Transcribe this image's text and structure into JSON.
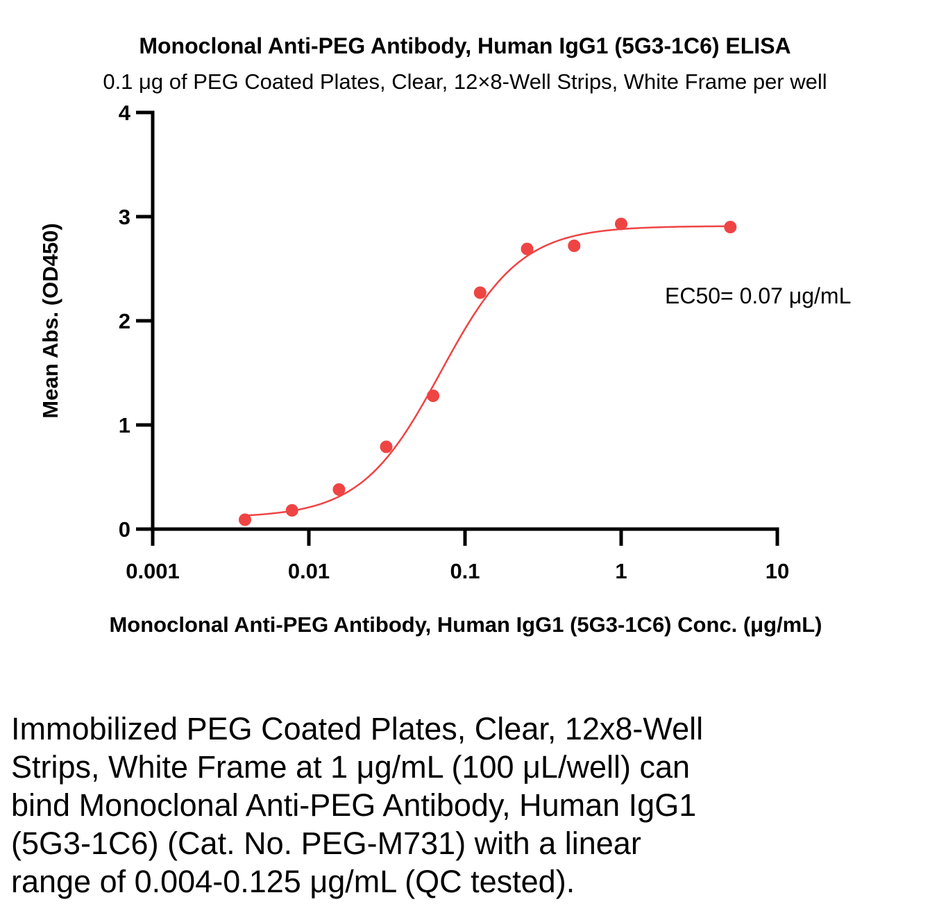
{
  "chart_data": {
    "type": "scatter",
    "title": "Monoclonal Anti-PEG Antibody, Human IgG1 (5G3-1C6) ELISA",
    "subtitle": "0.1 μg of PEG Coated Plates, Clear, 12×8-Well Strips, White Frame per well",
    "xlabel": "Monoclonal Anti-PEG Antibody, Human IgG1 (5G3-1C6) Conc. (μg/mL)",
    "ylabel": "Mean Abs. (OD450)",
    "xscale": "log",
    "xlim": [
      0.001,
      10
    ],
    "ylim": [
      0,
      4
    ],
    "x_ticks": [
      0.001,
      0.01,
      0.1,
      1,
      10
    ],
    "x_tick_labels": [
      "0.001",
      "0.01",
      "0.1",
      "1",
      "10"
    ],
    "y_ticks": [
      0,
      1,
      2,
      3,
      4
    ],
    "y_tick_labels": [
      "0",
      "1",
      "2",
      "3",
      "4"
    ],
    "grid": false,
    "series": [
      {
        "color": "#ef4444",
        "x": [
          0.0039,
          0.0078,
          0.0156,
          0.0313,
          0.0625,
          0.125,
          0.25,
          0.5,
          1,
          5
        ],
        "y": [
          0.09,
          0.18,
          0.38,
          0.79,
          1.28,
          2.27,
          2.69,
          2.72,
          2.93,
          2.9
        ],
        "fit": {
          "model": "4PL",
          "bottom": 0.11,
          "top": 2.91,
          "ec50": 0.07,
          "hill": 1.7
        }
      }
    ],
    "annotation": "EC50= 0.07 μg/mL"
  },
  "caption": "Immobilized PEG Coated Plates, Clear, 12x8-Well\nStrips, White Frame at 1 μg/mL (100 μL/well) can\nbind Monoclonal Anti-PEG Antibody, Human IgG1\n(5G3-1C6) (Cat. No. PEG-M731) with a linear\nrange of 0.004-0.125 μg/mL (QC tested)."
}
